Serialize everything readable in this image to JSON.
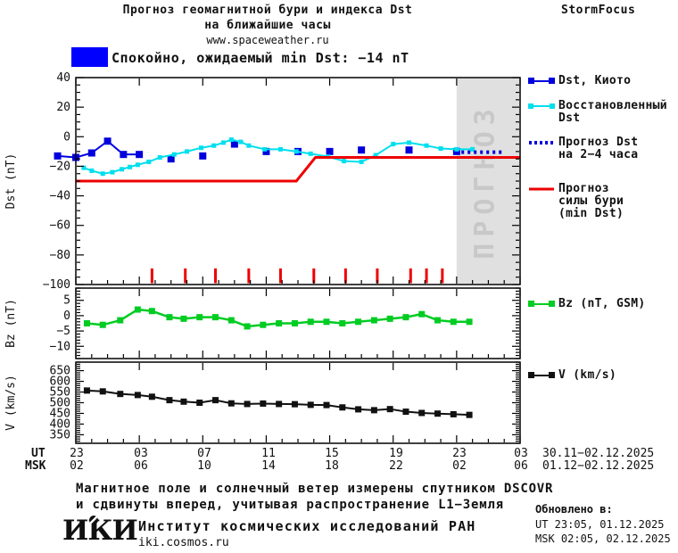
{
  "header": {
    "title_line1": "Прогноз геомагнитной бури и индекса Dst",
    "title_line2": "на ближайшие часы",
    "site": "www.spaceweather.ru",
    "brand": "StormFocus"
  },
  "status": {
    "label": "Спокойно, ожидаемый min Dst: −14 nT",
    "color": "#0000FF"
  },
  "legend": {
    "dst_kyoto": "Dst, Киото",
    "restored_l1": "Восстановленный",
    "restored_l2": "Dst",
    "forecast_l1": "Прогноз Dst",
    "forecast_l2": "на 2−4 часа",
    "storm_l1": "Прогноз",
    "storm_l2": "силы бури",
    "storm_l3": "(min Dst)",
    "bz": "Bz (nT, GSM)",
    "v": "V (km/s)"
  },
  "xaxis": {
    "ut_label": "UT",
    "msk_label": "MSK",
    "ut_ticks": [
      "23",
      "03",
      "07",
      "11",
      "15",
      "19",
      "23",
      "03"
    ],
    "msk_ticks": [
      "02",
      "06",
      "10",
      "14",
      "18",
      "22",
      "02",
      "06"
    ],
    "ut_range": "30.11−02.12.2025",
    "msk_range": "01.12−02.12.2025"
  },
  "footer": {
    "note_line1": "Магнитное поле и солнечный ветер измерены спутником DSCOVR",
    "note_line2": "и сдвинуты вперед, учитывая распространение L1−Земля",
    "logo": "ИКИ",
    "institute": "Институт космических исследований РАН",
    "site": "iki.cosmos.ru",
    "updated_label": "Обновлено в:",
    "updated_ut": "UT  23:05, 01.12.2025",
    "updated_msk": "MSK 02:05, 02.12.2025"
  },
  "chart_data": [
    {
      "type": "line",
      "ylabel": "Dst (nT)",
      "ylim": [
        -100,
        40
      ],
      "yticks": [
        40,
        20,
        0,
        -20,
        -40,
        -60,
        -80,
        -100
      ],
      "xlim_hours": [
        0,
        28
      ],
      "x_hours_note": "0 = 23:00 UT 30.11, major ticks every 4 h",
      "forecast_region": {
        "x_start": 24,
        "x_end": 28,
        "label": "ПРОГНОЗ",
        "fill": "#e0e0e0",
        "text_color": "#c8c8c8"
      },
      "event_marks_x": [
        4.8,
        6.9,
        8.8,
        10.9,
        12.9,
        15,
        17,
        19,
        21.1,
        22.1,
        23.1
      ],
      "event_marks_color": "#ee0000",
      "series": [
        {
          "name": "Dst, Киото",
          "color": "#0000dd",
          "width": 2,
          "marker": 8,
          "runs": [
            [
              [
                -1.15,
                -13
              ],
              [
                0,
                -14
              ],
              [
                1,
                -11
              ],
              [
                2,
                -3
              ],
              [
                3,
                -12
              ],
              [
                4,
                -12
              ]
            ]
          ],
          "points": [
            [
              -1.15,
              -13
            ],
            [
              0,
              -14
            ],
            [
              1,
              -11
            ],
            [
              2,
              -3
            ],
            [
              3,
              -12
            ],
            [
              4,
              -12
            ],
            [
              6,
              -15
            ],
            [
              8,
              -13
            ],
            [
              10,
              -5
            ],
            [
              12,
              -10
            ],
            [
              14,
              -10
            ],
            [
              16,
              -10
            ],
            [
              18,
              -9
            ],
            [
              21,
              -9
            ],
            [
              24,
              -10
            ]
          ]
        },
        {
          "name": "Восстановленный Dst",
          "color": "#00dfee",
          "width": 2,
          "marker": 5,
          "runs": [
            [
              [
                0.5,
                -21
              ],
              [
                1,
                -23
              ],
              [
                1.7,
                -25
              ],
              [
                2.3,
                -24
              ],
              [
                2.9,
                -22
              ],
              [
                3.4,
                -20.5
              ],
              [
                3.9,
                -19
              ],
              [
                4.6,
                -17
              ],
              [
                5.3,
                -14
              ],
              [
                6.2,
                -12
              ],
              [
                7,
                -10
              ],
              [
                7.9,
                -7.5
              ],
              [
                8.7,
                -6
              ],
              [
                9.3,
                -4
              ],
              [
                9.8,
                -2
              ],
              [
                10.4,
                -3.5
              ],
              [
                10.9,
                -6
              ],
              [
                11.9,
                -8.5
              ],
              [
                12.9,
                -8.5
              ],
              [
                13.9,
                -10
              ],
              [
                14.8,
                -11.5
              ],
              [
                15.9,
                -13.5
              ],
              [
                16.9,
                -16.5
              ],
              [
                18,
                -17
              ],
              [
                18.9,
                -12.5
              ],
              [
                20,
                -5
              ],
              [
                21,
                -4
              ],
              [
                22.1,
                -6
              ],
              [
                23,
                -8
              ],
              [
                24,
                -8.5
              ],
              [
                25,
                -8.5
              ]
            ]
          ],
          "points": [
            [
              0.5,
              -21
            ],
            [
              1,
              -23
            ],
            [
              1.7,
              -25
            ],
            [
              2.3,
              -24
            ],
            [
              2.9,
              -22
            ],
            [
              3.4,
              -20.5
            ],
            [
              3.9,
              -19
            ],
            [
              4.6,
              -17
            ],
            [
              5.3,
              -14
            ],
            [
              6.2,
              -12
            ],
            [
              7,
              -10
            ],
            [
              7.9,
              -7.5
            ],
            [
              8.7,
              -6
            ],
            [
              9.3,
              -4
            ],
            [
              9.8,
              -2
            ],
            [
              10.4,
              -3.5
            ],
            [
              10.9,
              -6
            ],
            [
              11.9,
              -8.5
            ],
            [
              12.9,
              -8.5
            ],
            [
              13.9,
              -10
            ],
            [
              14.8,
              -11.5
            ],
            [
              15.9,
              -13.5
            ],
            [
              16.9,
              -16.5
            ],
            [
              18,
              -17
            ],
            [
              18.9,
              -12.5
            ],
            [
              20,
              -5
            ],
            [
              21,
              -4
            ],
            [
              22.1,
              -6
            ],
            [
              23,
              -8
            ],
            [
              24,
              -8.5
            ],
            [
              25,
              -8.5
            ]
          ]
        },
        {
          "name": "Прогноз Dst на 2−4 часа",
          "color": "#0000dd",
          "width": 4,
          "dash": "3 4",
          "marker": 0,
          "runs": [
            [
              [
                24.3,
                -10.5
              ],
              [
                27,
                -10.5
              ]
            ]
          ],
          "points": []
        },
        {
          "name": "Прогноз силы бури (min Dst)",
          "color": "#ee0000",
          "width": 3,
          "marker": 0,
          "runs": [
            [
              [
                0,
                -30
              ],
              [
                13.9,
                -30
              ],
              [
                15.1,
                -14
              ],
              [
                28,
                -14
              ]
            ]
          ],
          "points": []
        }
      ]
    },
    {
      "type": "line",
      "ylabel": "Bz (nT)",
      "ylim": [
        -14,
        9
      ],
      "yticks": [
        5,
        0,
        -5,
        -10
      ],
      "xlim_hours": [
        0,
        28
      ],
      "series": [
        {
          "name": "Bz (nT, GSM)",
          "color": "#00cc22",
          "width": 2.5,
          "marker": 7,
          "runs": [
            [
              [
                0.7,
                -2.5
              ],
              [
                1.7,
                -3
              ],
              [
                2.8,
                -1.5
              ],
              [
                3.9,
                2
              ],
              [
                4.8,
                1.5
              ],
              [
                5.9,
                -0.5
              ],
              [
                6.8,
                -1
              ],
              [
                7.8,
                -0.5
              ],
              [
                8.8,
                -0.5
              ],
              [
                9.8,
                -1.5
              ],
              [
                10.8,
                -3.5
              ],
              [
                11.8,
                -3
              ],
              [
                12.8,
                -2.5
              ],
              [
                13.8,
                -2.5
              ],
              [
                14.8,
                -2
              ],
              [
                15.8,
                -2
              ],
              [
                16.8,
                -2.5
              ],
              [
                17.8,
                -2
              ],
              [
                18.8,
                -1.5
              ],
              [
                19.8,
                -1
              ],
              [
                20.8,
                -0.5
              ],
              [
                21.8,
                0.5
              ],
              [
                22.8,
                -1.5
              ],
              [
                23.8,
                -2
              ],
              [
                24.8,
                -2
              ]
            ]
          ],
          "points": [
            [
              0.7,
              -2.5
            ],
            [
              1.7,
              -3
            ],
            [
              2.8,
              -1.5
            ],
            [
              3.9,
              2
            ],
            [
              4.8,
              1.5
            ],
            [
              5.9,
              -0.5
            ],
            [
              6.8,
              -1
            ],
            [
              7.8,
              -0.5
            ],
            [
              8.8,
              -0.5
            ],
            [
              9.8,
              -1.5
            ],
            [
              10.8,
              -3.5
            ],
            [
              11.8,
              -3
            ],
            [
              12.8,
              -2.5
            ],
            [
              13.8,
              -2.5
            ],
            [
              14.8,
              -2
            ],
            [
              15.8,
              -2
            ],
            [
              16.8,
              -2.5
            ],
            [
              17.8,
              -2
            ],
            [
              18.8,
              -1.5
            ],
            [
              19.8,
              -1
            ],
            [
              20.8,
              -0.5
            ],
            [
              21.8,
              0.5
            ],
            [
              22.8,
              -1.5
            ],
            [
              23.8,
              -2
            ],
            [
              24.8,
              -2
            ]
          ]
        }
      ]
    },
    {
      "type": "line",
      "ylabel": "V (km/s)",
      "ylim": [
        310,
        690
      ],
      "yticks": [
        650,
        600,
        550,
        500,
        450,
        400,
        350
      ],
      "xlim_hours": [
        0,
        28
      ],
      "series": [
        {
          "name": "V (km/s)",
          "color": "#111111",
          "width": 2,
          "marker": 7,
          "runs": [
            [
              [
                0.7,
                557
              ],
              [
                1.7,
                553
              ],
              [
                2.8,
                541
              ],
              [
                3.9,
                536
              ],
              [
                4.8,
                528
              ],
              [
                5.9,
                512
              ],
              [
                6.8,
                505
              ],
              [
                7.8,
                500
              ],
              [
                8.8,
                512
              ],
              [
                9.8,
                497
              ],
              [
                10.8,
                494
              ],
              [
                11.8,
                496
              ],
              [
                12.8,
                494
              ],
              [
                13.8,
                493
              ],
              [
                14.8,
                490
              ],
              [
                15.8,
                489
              ],
              [
                16.8,
                478
              ],
              [
                17.8,
                469
              ],
              [
                18.8,
                465
              ],
              [
                19.8,
                470
              ],
              [
                20.8,
                458
              ],
              [
                21.8,
                452
              ],
              [
                22.8,
                449
              ],
              [
                23.8,
                446
              ],
              [
                24.8,
                443
              ]
            ]
          ],
          "points": [
            [
              0.7,
              557
            ],
            [
              1.7,
              553
            ],
            [
              2.8,
              541
            ],
            [
              3.9,
              536
            ],
            [
              4.8,
              528
            ],
            [
              5.9,
              512
            ],
            [
              6.8,
              505
            ],
            [
              7.8,
              500
            ],
            [
              8.8,
              512
            ],
            [
              9.8,
              497
            ],
            [
              10.8,
              494
            ],
            [
              11.8,
              496
            ],
            [
              12.8,
              494
            ],
            [
              13.8,
              493
            ],
            [
              14.8,
              490
            ],
            [
              15.8,
              489
            ],
            [
              16.8,
              478
            ],
            [
              17.8,
              469
            ],
            [
              18.8,
              465
            ],
            [
              19.8,
              470
            ],
            [
              20.8,
              458
            ],
            [
              21.8,
              452
            ],
            [
              22.8,
              449
            ],
            [
              23.8,
              446
            ],
            [
              24.8,
              443
            ]
          ]
        }
      ]
    }
  ]
}
